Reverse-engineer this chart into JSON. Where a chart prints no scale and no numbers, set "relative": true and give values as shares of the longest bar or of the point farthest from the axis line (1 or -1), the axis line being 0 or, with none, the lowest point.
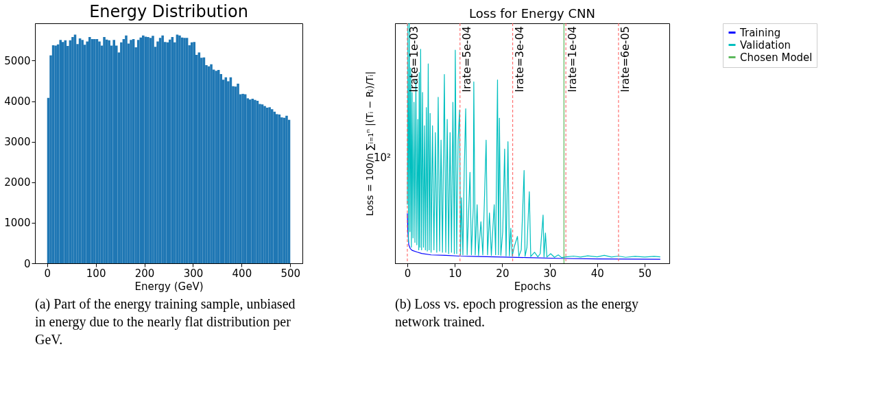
{
  "chart_data": [
    {
      "type": "histogram",
      "title": "Energy Distribution",
      "xlabel": "Energy (GeV)",
      "color": "#1f77b4",
      "bins": [
        0,
        5,
        10,
        15,
        20,
        25,
        30,
        35,
        40,
        45,
        50,
        55,
        60,
        65,
        70,
        75,
        80,
        85,
        90,
        95,
        100,
        105,
        110,
        115,
        120,
        125,
        130,
        135,
        140,
        145,
        150,
        155,
        160,
        165,
        170,
        175,
        180,
        185,
        190,
        195,
        200,
        205,
        210,
        215,
        220,
        225,
        230,
        235,
        240,
        245,
        250,
        255,
        260,
        265,
        270,
        275,
        280,
        285,
        290,
        295,
        300,
        305,
        310,
        315,
        320,
        325,
        330,
        335,
        340,
        345,
        350,
        355,
        360,
        365,
        370,
        375,
        380,
        385,
        390,
        395,
        400,
        405,
        410,
        415,
        420,
        425,
        430,
        435,
        440,
        445,
        450,
        455,
        460,
        465,
        470,
        475,
        480,
        485,
        490,
        495,
        500
      ],
      "values": [
        4080,
        5130,
        5380,
        5370,
        5400,
        5510,
        5460,
        5500,
        5360,
        5500,
        5580,
        5640,
        5410,
        5550,
        5510,
        5390,
        5470,
        5580,
        5530,
        5530,
        5530,
        5470,
        5370,
        5580,
        5520,
        5500,
        5370,
        5510,
        5370,
        5200,
        5450,
        5530,
        5620,
        5420,
        5510,
        5530,
        5330,
        5510,
        5570,
        5620,
        5590,
        5580,
        5560,
        5610,
        5340,
        5470,
        5560,
        5620,
        5460,
        5450,
        5520,
        5580,
        5450,
        5640,
        5620,
        5570,
        5560,
        5560,
        5380,
        5450,
        5460,
        5140,
        5200,
        5070,
        5080,
        4890,
        4860,
        4910,
        4780,
        4750,
        4770,
        4670,
        4530,
        4590,
        4490,
        4590,
        4370,
        4360,
        4430,
        4170,
        4180,
        4170,
        4070,
        4040,
        4060,
        4030,
        4010,
        3930,
        3920,
        3880,
        3840,
        3850,
        3800,
        3740,
        3680,
        3670,
        3600,
        3590,
        3640,
        3540
      ],
      "xlim": [
        -25,
        525
      ],
      "ylim": [
        0,
        5920
      ],
      "xticks": [
        0,
        100,
        200,
        300,
        400,
        500
      ],
      "yticks": [
        0,
        1000,
        2000,
        3000,
        4000,
        5000
      ],
      "grid": false,
      "annotations": [
        "(a)  Part of the energy training sample, unbiased in energy due to the nearly flat distribution per GeV."
      ]
    },
    {
      "type": "line",
      "title": "Loss for Energy CNN",
      "xlabel": "Epochs",
      "ylabel": "Loss = 100/n ∑ᵢ₌₁ⁿ |(Tᵢ − Rᵢ)/Tᵢ|",
      "relative": true,
      "xlim": [
        -2.6,
        55.2
      ],
      "xticks": [
        0,
        10,
        20,
        30,
        40,
        50
      ],
      "grid": false,
      "legend": "right",
      "series": [
        {
          "name": "Training",
          "color": "#0000ff",
          "x": [
            0,
            0.1,
            0.3,
            0.6,
            1,
            2,
            3,
            5,
            8,
            11,
            15,
            20,
            25,
            33,
            40,
            53.3
          ],
          "values": [
            0.208,
            0.132,
            0.077,
            0.062,
            0.054,
            0.047,
            0.041,
            0.035,
            0.033,
            0.03,
            0.028,
            0.026,
            0.024,
            0.02,
            0.018,
            0.017
          ]
        },
        {
          "name": "Validation",
          "color": "#00bfbf",
          "x": [
            0.0,
            0.1,
            0.25,
            0.4,
            0.55,
            0.7,
            0.85,
            1.0,
            1.2,
            1.4,
            1.6,
            1.8,
            2.0,
            2.2,
            2.4,
            2.5,
            2.65,
            2.8,
            3.0,
            3.2,
            3.4,
            3.6,
            3.8,
            4.0,
            4.2,
            4.4,
            4.6,
            4.8,
            5.0,
            5.3,
            5.6,
            5.9,
            6.2,
            6.5,
            6.8,
            7.1,
            7.4,
            7.8,
            8.1,
            8.4,
            8.7,
            9.0,
            9.3,
            9.6,
            9.9,
            10.1,
            10.4,
            10.7,
            11.0,
            11.2,
            11.4,
            11.7,
            12.0,
            12.3,
            12.6,
            13.2,
            13.5,
            13.9,
            14.0,
            14.3,
            14.7,
            15.0,
            15.5,
            15.9,
            16.3,
            16.6,
            16.9,
            17.3,
            17.7,
            18.3,
            18.6,
            19.0,
            19.2,
            19.4,
            19.7,
            20.1,
            20.5,
            20.8,
            21.2,
            21.5,
            21.8,
            22.1,
            22.5,
            23.2,
            23.5,
            24.0,
            24.6,
            24.8,
            25.2,
            25.7,
            26.0,
            26.8,
            27.5,
            28.0,
            28.6,
            28.8,
            29.1,
            29.4,
            30.2,
            31.0,
            31.8,
            32.5,
            33.5,
            35,
            36.5,
            38,
            40,
            41.5,
            43,
            44.5,
            46,
            48,
            50,
            52,
            53.3
          ],
          "values": [
            0.244,
            1,
            0.087,
            1,
            0.132,
            0.814,
            0.067,
            0.712,
            0.106,
            0.671,
            0.087,
            0.766,
            0.077,
            0.6,
            0.056,
            0.795,
            0.067,
            0.892,
            0.056,
            0.712,
            0.067,
            0.573,
            0.056,
            0.649,
            0.051,
            0.831,
            0.056,
            0.625,
            0.046,
            0.573,
            0.056,
            0.545,
            0.046,
            0.692,
            0.051,
            0.513,
            0.046,
            0.787,
            0.046,
            0.6,
            0.04,
            0.545,
            0.046,
            0.671,
            0.04,
            0.888,
            0.04,
            0.513,
            0.639,
            0.035,
            0.273,
            0.035,
            0.402,
            0.644,
            0.035,
            0.379,
            0.035,
            0.234,
            0.756,
            0.035,
            0.244,
            0.033,
            0.173,
            0.035,
            0.304,
            0.513,
            0.035,
            0.21,
            0.033,
            0.244,
            0.035,
            0.764,
            0.035,
            0.605,
            0.033,
            0.132,
            0.476,
            0.031,
            0.507,
            0.031,
            0.146,
            0.03,
            0.067,
            0.112,
            0.029,
            0.056,
            0.387,
            0.029,
            0.067,
            0.298,
            0.028,
            0.046,
            0.027,
            0.04,
            0.201,
            0.026,
            0.126,
            0.026,
            0.04,
            0.025,
            0.035,
            0.024,
            0.027,
            0.03,
            0.026,
            0.031,
            0.027,
            0.033,
            0.026,
            0.03,
            0.025,
            0.029,
            0.026,
            0.029,
            0.027
          ]
        },
        {
          "name": "Chosen Model",
          "color": "#5cb85c",
          "x": [
            33.0,
            33.0
          ],
          "values": [
            0,
            1
          ]
        }
      ],
      "ref_lines": [
        {
          "axis": "x",
          "value": 0,
          "color": "#ff5555",
          "line_style": "dashed"
        },
        {
          "axis": "x",
          "value": 11.1,
          "color": "#ff5555",
          "line_style": "dashed"
        },
        {
          "axis": "x",
          "value": 22.2,
          "color": "#ff5555",
          "line_style": "dashed"
        },
        {
          "axis": "x",
          "value": 33.4,
          "color": "#ff5555",
          "line_style": "dashed"
        },
        {
          "axis": "x",
          "value": 44.5,
          "color": "#ff5555",
          "line_style": "dashed"
        }
      ],
      "annotations": [
        "10²",
        {
          "text": "lrate=1e-03",
          "x": 0
        },
        {
          "text": "lrate=5e-04",
          "x": 11.1
        },
        {
          "text": "lrate=3e-04",
          "x": 22.2
        },
        {
          "text": "lrate=1e-04",
          "x": 33.4
        },
        {
          "text": "lrate=6e-05",
          "x": 44.5
        },
        "(b)  Loss vs. epoch progression as the energy network trained."
      ]
    }
  ]
}
